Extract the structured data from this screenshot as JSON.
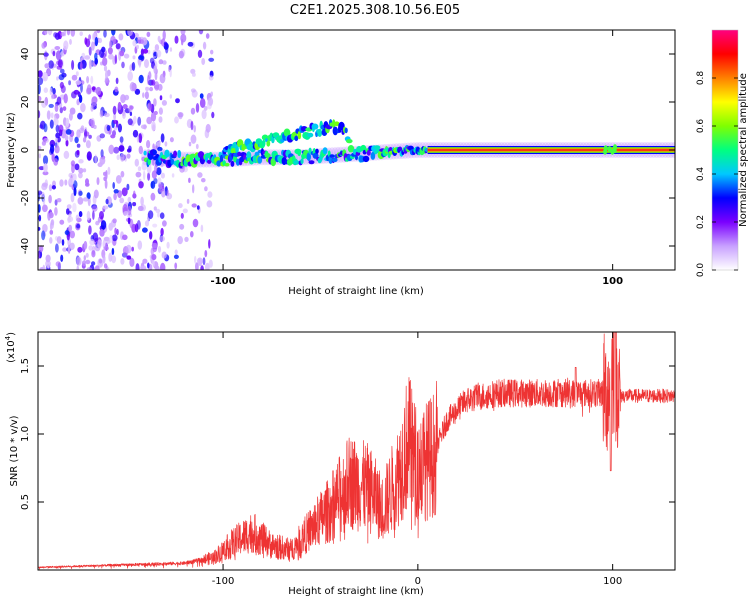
{
  "title": "C2E1.2025.308.10.56.E05",
  "chart_data": [
    {
      "type": "heatmap",
      "name": "spectrogram",
      "xlabel": "Height of straight line (km)",
      "ylabel": "Frequency (Hz)",
      "xlim": [
        -195,
        132
      ],
      "ylim": [
        -50,
        50
      ],
      "xticks": [
        -100,
        100
      ],
      "xtick_labels": [
        "-100",
        "100"
      ],
      "yticks": [
        -40,
        -20,
        0,
        20,
        40
      ],
      "ytick_labels": [
        "-40",
        "-20",
        "0",
        "20",
        "40"
      ],
      "ridge": [
        {
          "x": -140,
          "y": -3
        },
        {
          "x": -120,
          "y": -4
        },
        {
          "x": -100,
          "y": -4
        },
        {
          "x": -80,
          "y": -3
        },
        {
          "x": -60,
          "y": -3
        },
        {
          "x": -40,
          "y": -2
        },
        {
          "x": -20,
          "y": -1
        },
        {
          "x": 0,
          "y": 0
        },
        {
          "x": 20,
          "y": 0
        },
        {
          "x": 60,
          "y": 0
        },
        {
          "x": 100,
          "y": 0
        },
        {
          "x": 130,
          "y": 0
        }
      ],
      "upper_branch": [
        {
          "x": -100,
          "y": 0
        },
        {
          "x": -80,
          "y": 3
        },
        {
          "x": -65,
          "y": 6
        },
        {
          "x": -50,
          "y": 9
        },
        {
          "x": -40,
          "y": 10
        },
        {
          "x": -35,
          "y": 5
        }
      ],
      "noise_region_x": [
        -195,
        -115
      ],
      "colorbar": {
        "label": "Normalized spectral amplitude",
        "range": [
          0,
          1
        ],
        "ticks": [
          0.0,
          0.2,
          0.4,
          0.6,
          0.8
        ],
        "tick_labels": [
          "0.0",
          "0.2",
          "0.4",
          "0.6",
          "0.8"
        ],
        "colors": [
          "#ffffff",
          "#c8a0ff",
          "#7a00ff",
          "#0000ff",
          "#00c8ff",
          "#00ff80",
          "#80ff00",
          "#ffff00",
          "#ff8000",
          "#ff0000",
          "#ff0080"
        ]
      }
    },
    {
      "type": "line",
      "name": "snr",
      "xlabel": "Height of straight line (km)",
      "ylabel": "SNR (10 * v/v)",
      "y_exponent_label": "(x10",
      "y_exponent": "4",
      "xlim": [
        -195,
        132
      ],
      "ylim": [
        0,
        17500
      ],
      "xticks": [
        -100,
        0,
        100
      ],
      "xtick_labels": [
        "-100",
        "0",
        "100"
      ],
      "yticks": [
        5000,
        10000,
        15000
      ],
      "ytick_labels": [
        "0.5",
        "1.0",
        "1.5"
      ],
      "color": "#ee3333",
      "envelope": [
        {
          "x": -195,
          "y": 200
        },
        {
          "x": -120,
          "y": 500
        },
        {
          "x": -105,
          "y": 900
        },
        {
          "x": -95,
          "y": 2000
        },
        {
          "x": -85,
          "y": 2800
        },
        {
          "x": -75,
          "y": 1800
        },
        {
          "x": -65,
          "y": 1500
        },
        {
          "x": -55,
          "y": 3000
        },
        {
          "x": -45,
          "y": 4500
        },
        {
          "x": -35,
          "y": 6500
        },
        {
          "x": -25,
          "y": 6000
        },
        {
          "x": -18,
          "y": 4500
        },
        {
          "x": -10,
          "y": 7000
        },
        {
          "x": -5,
          "y": 9500
        },
        {
          "x": 0,
          "y": 7500
        },
        {
          "x": 8,
          "y": 8500
        },
        {
          "x": 15,
          "y": 11000
        },
        {
          "x": 25,
          "y": 12500
        },
        {
          "x": 40,
          "y": 13000
        },
        {
          "x": 60,
          "y": 13000
        },
        {
          "x": 80,
          "y": 13000
        },
        {
          "x": 98,
          "y": 13000
        },
        {
          "x": 100,
          "y": 15000
        },
        {
          "x": 104,
          "y": 12800
        },
        {
          "x": 132,
          "y": 12800
        }
      ],
      "features": [
        {
          "x": 81,
          "y": 14900
        },
        {
          "x": 99,
          "y": 7300
        },
        {
          "x": 101,
          "y": 17500
        }
      ]
    }
  ]
}
